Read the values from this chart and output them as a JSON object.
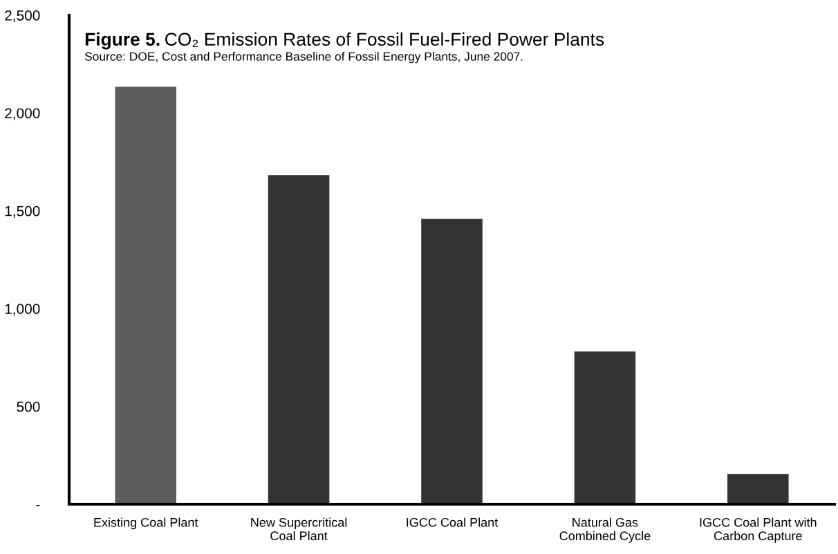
{
  "chart_data": {
    "type": "bar",
    "title": "Figure 5. CO₂ Emission Rates of Fossil Fuel-Fired Power Plants",
    "annotations": [
      "Source: DOE, Cost and Performance Baseline of Fossil Energy Plants, June 2007."
    ],
    "categories": [
      "Existing Coal Plant",
      "New Supercritical\nCoal Plant",
      "IGCC Coal Plant",
      "Natural Gas\nCombined Cycle",
      "IGCC Coal Plant with\nCarbon Capture"
    ],
    "values": [
      2134,
      1682,
      1459,
      781,
      155
    ],
    "colors": [
      "#5c5c5c",
      "#333333",
      "#333333",
      "#333333",
      "#333333"
    ],
    "ylim": [
      0,
      2500
    ],
    "yticks": [
      {
        "value": 0,
        "label": "-"
      },
      500,
      {
        "value": 1000,
        "label": "1,000"
      },
      {
        "value": 1500,
        "label": "1,500"
      },
      {
        "value": 2000,
        "label": "2,000"
      },
      {
        "value": 2500,
        "label": "2,500"
      }
    ],
    "grid": false,
    "legend": false
  }
}
